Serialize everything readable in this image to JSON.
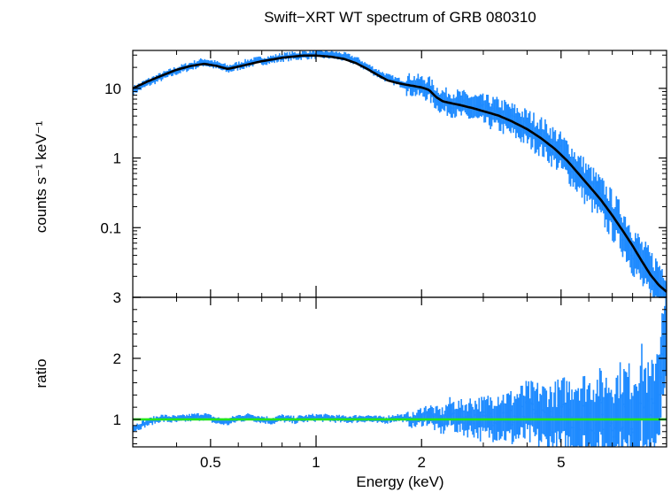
{
  "chart_data": {
    "type": "scatter",
    "title": "Swift−XRT WT spectrum of GRB 080310",
    "xlabel": "Energy (keV)",
    "x_scale": "log",
    "xlim": [
      0.3,
      10
    ],
    "x_ticks": [
      "0.5",
      "1",
      "2",
      "5"
    ],
    "panels": [
      {
        "name": "spectrum",
        "ylabel": "counts s⁻¹ keV⁻¹",
        "y_scale": "log",
        "ylim": [
          0.01,
          35
        ],
        "y_ticks": [
          "10",
          "1",
          "0.1"
        ],
        "series": [
          {
            "role": "data",
            "color": "#1f8bff",
            "x": [
              0.3,
              0.33,
              0.36,
              0.4,
              0.44,
              0.48,
              0.52,
              0.56,
              0.6,
              0.65,
              0.7,
              0.75,
              0.8,
              0.86,
              0.92,
              1.0,
              1.1,
              1.2,
              1.3,
              1.4,
              1.5,
              1.6,
              1.7,
              1.8,
              1.9,
              2.0,
              2.1,
              2.2,
              2.3,
              2.4,
              2.6,
              2.8,
              3.0,
              3.3,
              3.6,
              4.0,
              4.4,
              4.8,
              5.2,
              5.6,
              6.0,
              6.5,
              7.0,
              7.5,
              8.0,
              8.5,
              9.0,
              9.5,
              10.0
            ],
            "y": [
              9.3,
              12,
              14.5,
              18,
              21,
              24,
              21.5,
              19,
              21,
              23.5,
              25,
              26,
              28,
              29,
              30,
              31,
              30.5,
              28.5,
              25,
              20,
              16.5,
              14,
              12.5,
              11.5,
              11,
              10.5,
              9.8,
              7.5,
              6.5,
              6.3,
              5.8,
              5.3,
              4.8,
              4.2,
              3.5,
              2.7,
              2.0,
              1.4,
              0.95,
              0.6,
              0.4,
              0.25,
              0.15,
              0.09,
              0.05,
              0.03,
              0.02,
              0.015,
              0.012
            ]
          },
          {
            "role": "model",
            "color": "#000000",
            "x": [
              0.3,
              0.33,
              0.36,
              0.4,
              0.44,
              0.48,
              0.52,
              0.56,
              0.6,
              0.65,
              0.7,
              0.75,
              0.8,
              0.86,
              0.92,
              1.0,
              1.1,
              1.2,
              1.3,
              1.4,
              1.5,
              1.6,
              1.7,
              1.8,
              1.9,
              2.0,
              2.1,
              2.2,
              2.3,
              2.4,
              2.6,
              2.8,
              3.0,
              3.3,
              3.6,
              4.0,
              4.4,
              4.8,
              5.2,
              5.6,
              6.0,
              6.5,
              7.0,
              7.5,
              8.0,
              8.5,
              9.0,
              9.5,
              10.0
            ],
            "y": [
              10,
              12.5,
              15,
              18.5,
              21,
              22.5,
              21,
              19,
              20.5,
              22.5,
              24.5,
              26,
              27.5,
              28.5,
              29.5,
              29.5,
              28.5,
              26.5,
              23,
              19,
              15.5,
              13,
              12,
              11.3,
              10.8,
              10.3,
              9.5,
              7.5,
              6.5,
              6.2,
              5.7,
              5.2,
              4.7,
              4.1,
              3.4,
              2.6,
              1.9,
              1.35,
              0.92,
              0.6,
              0.4,
              0.25,
              0.15,
              0.09,
              0.055,
              0.033,
              0.021,
              0.015,
              0.012
            ]
          }
        ]
      },
      {
        "name": "ratio",
        "ylabel": "ratio",
        "y_scale": "linear",
        "ylim": [
          0.55,
          3
        ],
        "y_ticks": [
          "3",
          "2",
          "1"
        ],
        "reference_line": {
          "y": 1,
          "color": "#22e61a"
        },
        "series": [
          {
            "role": "data",
            "color": "#1f8bff",
            "x": [
              0.3,
              0.33,
              0.36,
              0.4,
              0.44,
              0.48,
              0.52,
              0.56,
              0.6,
              0.65,
              0.7,
              0.75,
              0.8,
              0.86,
              0.92,
              1.0,
              1.1,
              1.2,
              1.3,
              1.4,
              1.5,
              1.6,
              1.7,
              1.8,
              1.9,
              2.0,
              2.1,
              2.2,
              2.3,
              2.4,
              2.6,
              2.8,
              3.0,
              3.3,
              3.6,
              4.0,
              4.4,
              4.8,
              5.2,
              5.6,
              6.0,
              6.5,
              7.0,
              7.5,
              8.0,
              8.5,
              9.0,
              9.5,
              10.0
            ],
            "y": [
              0.85,
              0.95,
              1.02,
              1.0,
              1.03,
              1.05,
              0.98,
              0.96,
              1.02,
              1.04,
              1.0,
              0.98,
              1.02,
              0.99,
              1.01,
              1.03,
              1.02,
              1.0,
              1.01,
              1.02,
              0.99,
              1.0,
              1.03,
              1.02,
              0.98,
              1.05,
              1.08,
              1.0,
              0.97,
              1.1,
              1.02,
              1.05,
              1.0,
              1.08,
              1.02,
              1.1,
              1.04,
              1.0,
              1.06,
              1.1,
              1.02,
              1.05,
              1.0,
              1.12,
              1.0,
              1.3,
              0.9,
              1.6,
              2.2
            ]
          }
        ]
      }
    ]
  }
}
